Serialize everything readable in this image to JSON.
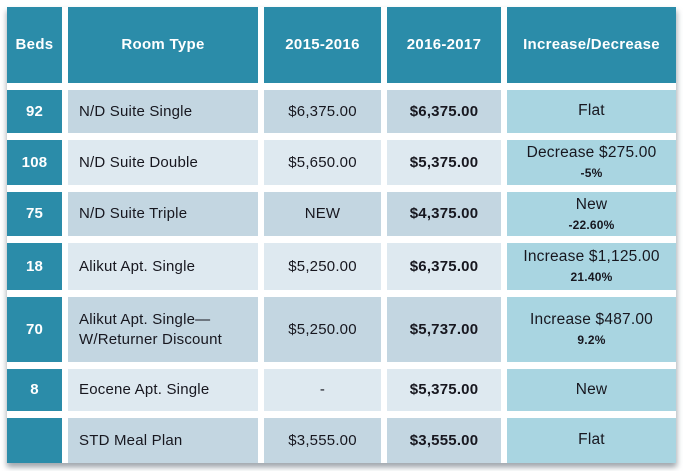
{
  "chart_data": {
    "type": "table",
    "columns": [
      "Beds",
      "Room Type",
      "2015-2016",
      "2016-2017",
      "Increase/Decrease"
    ],
    "rows": [
      {
        "beds": "92",
        "room_type": "N/D Suite Single",
        "price_2015_2016": "$6,375.00",
        "price_2016_2017": "$6,375.00",
        "change": "Flat",
        "change_pct": ""
      },
      {
        "beds": "108",
        "room_type": "N/D Suite Double",
        "price_2015_2016": "$5,650.00",
        "price_2016_2017": "$5,375.00",
        "change": "Decrease $275.00",
        "change_pct": "-5%"
      },
      {
        "beds": "75",
        "room_type": "N/D Suite Triple",
        "price_2015_2016": "NEW",
        "price_2016_2017": "$4,375.00",
        "change": "New",
        "change_pct": "-22.60%"
      },
      {
        "beds": "18",
        "room_type": "Alikut Apt. Single",
        "price_2015_2016": "$5,250.00",
        "price_2016_2017": "$6,375.00",
        "change": "Increase $1,125.00",
        "change_pct": "21.40%"
      },
      {
        "beds": "70",
        "room_type": "Alikut Apt. Single—W/Returner Discount",
        "price_2015_2016": "$5,250.00",
        "price_2016_2017": "$5,737.00",
        "change": "Increase $487.00",
        "change_pct": "9.2%"
      },
      {
        "beds": "8",
        "room_type": "Eocene Apt. Single",
        "price_2015_2016": "-",
        "price_2016_2017": "$5,375.00",
        "change": "New",
        "change_pct": ""
      },
      {
        "beds": "",
        "room_type": "STD Meal Plan",
        "price_2015_2016": "$3,555.00",
        "price_2016_2017": "$3,555.00",
        "change": "Flat",
        "change_pct": ""
      }
    ],
    "colors": {
      "header_bg": "#2B8CA9",
      "beds_column_bg": "#2B8CA9",
      "row_band_dark": "#C3D6E1",
      "row_band_light": "#DEE9F0",
      "change_column_bg": "#A9D5E1",
      "header_text": "#FFFFFF",
      "body_text": "#17171F"
    },
    "layout": {
      "grid": "banded rows, white separators",
      "bold_column": "2016-2017"
    }
  }
}
